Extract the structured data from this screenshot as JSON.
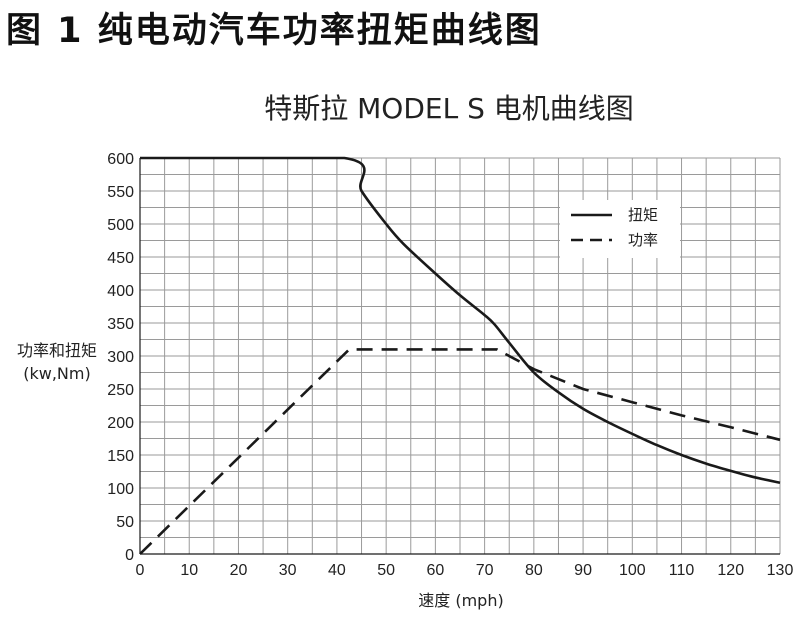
{
  "figure_title": "图 1   纯电动汽车功率扭矩曲线图",
  "chart_data": {
    "type": "line",
    "title": "特斯拉 MODEL S 电机曲线图",
    "xlabel": "速度 (mph)",
    "ylabel_line1": "功率和扭矩",
    "ylabel_line2": "(kw,Nm)",
    "xlim": [
      0,
      130
    ],
    "ylim": [
      0,
      600
    ],
    "xticks": [
      0,
      10,
      20,
      30,
      40,
      50,
      60,
      70,
      80,
      90,
      100,
      110,
      120,
      130
    ],
    "yticks": [
      0,
      50,
      100,
      150,
      200,
      250,
      300,
      350,
      400,
      450,
      500,
      550,
      600
    ],
    "grid": true,
    "legend_position": "top-right",
    "series": [
      {
        "name": "扭矩",
        "style": "solid",
        "color": "#1a1a1a",
        "x": [
          0,
          41.5,
          45,
          50,
          53.5,
          60,
          65,
          70,
          72,
          75,
          80,
          85,
          90,
          95,
          100,
          105,
          110,
          115,
          120,
          125,
          130
        ],
        "y": [
          600,
          600,
          550,
          500,
          470,
          425,
          392,
          362,
          348,
          320,
          275,
          245,
          220,
          200,
          182,
          165,
          150,
          137,
          126,
          116,
          108
        ]
      },
      {
        "name": "功率",
        "style": "dashed",
        "color": "#1a1a1a",
        "x": [
          0,
          42.5,
          72.5,
          80,
          90,
          100,
          110,
          120,
          130
        ],
        "y": [
          0,
          310,
          310,
          280,
          250,
          230,
          210,
          192,
          173
        ]
      }
    ]
  }
}
